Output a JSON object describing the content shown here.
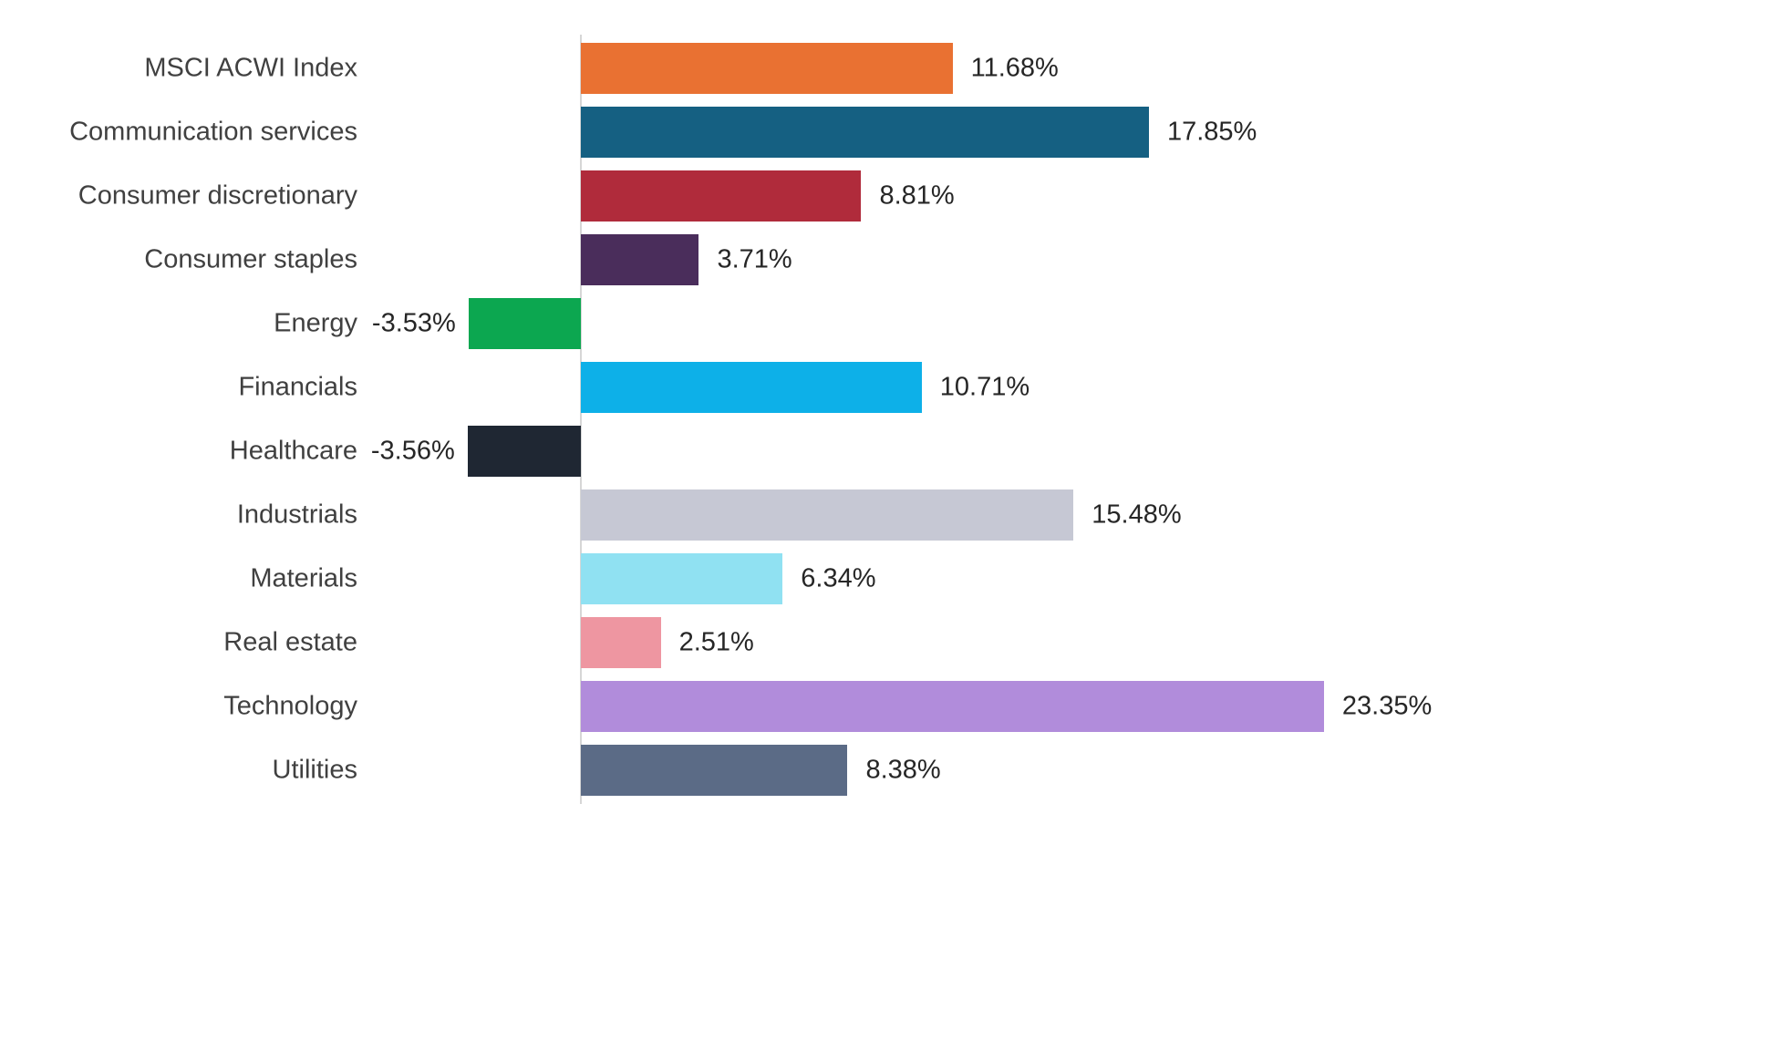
{
  "chart_data": {
    "type": "bar",
    "orientation": "horizontal",
    "title": "",
    "xlabel": "",
    "ylabel": "",
    "categories": [
      "MSCI ACWI Index",
      "Communication services",
      "Consumer discretionary",
      "Consumer staples",
      "Energy",
      "Financials",
      "Healthcare",
      "Industrials",
      "Materials",
      "Real estate",
      "Technology",
      "Utilities"
    ],
    "values": [
      11.68,
      17.85,
      8.81,
      3.71,
      -3.53,
      10.71,
      -3.56,
      15.48,
      6.34,
      2.51,
      23.35,
      8.38
    ],
    "value_labels": [
      "11.68%",
      "17.85%",
      "8.81%",
      "3.71%",
      "-3.53%",
      "10.71%",
      "-3.56%",
      "15.48%",
      "6.34%",
      "2.51%",
      "23.35%",
      "8.38%"
    ],
    "colors": [
      "#E97132",
      "#156082",
      "#B02B3B",
      "#4A2D5B",
      "#0CA750",
      "#0DB0E8",
      "#1F2733",
      "#C6C8D4",
      "#90E1F2",
      "#EE96A1",
      "#B18CDB",
      "#5B6B86"
    ],
    "xlim": [
      -5,
      25
    ],
    "grid": false,
    "legend": false,
    "zero_axis_line_color": "#D6D6D6",
    "category_label_color": "#404040",
    "value_label_color": "#262626",
    "background": "#FFFFFF"
  }
}
